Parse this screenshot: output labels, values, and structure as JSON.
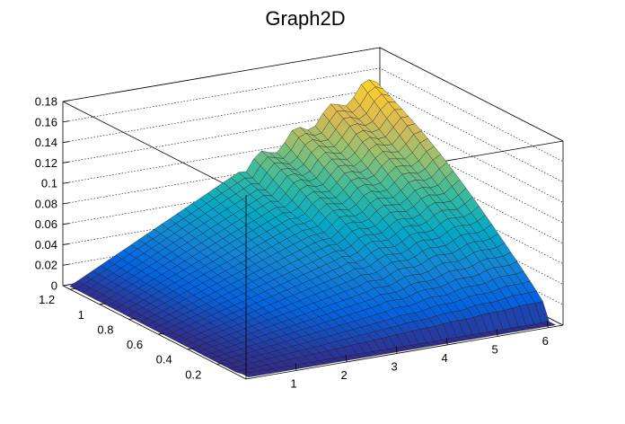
{
  "chart_data": {
    "type": "surface",
    "title": "Graph2D",
    "x_axis": {
      "range": [
        0,
        6.3
      ],
      "ticks": [
        "1",
        "2",
        "3",
        "4",
        "5",
        "6"
      ]
    },
    "y_axis": {
      "range": [
        0,
        1.25
      ],
      "ticks": [
        "0.2",
        "0.4",
        "0.6",
        "0.8",
        "1",
        "1.2"
      ]
    },
    "z_axis": {
      "range": [
        0,
        0.18
      ],
      "ticks": [
        "0",
        "0.02",
        "0.04",
        "0.06",
        "0.08",
        "0.1",
        "0.12",
        "0.14",
        "0.16",
        "0.18"
      ]
    },
    "grid": true,
    "palette": "kBird",
    "colors": [
      "#352a87",
      "#0363e1",
      "#1485d4",
      "#06a7c6",
      "#38b99e",
      "#92bf73",
      "#d9ba56",
      "#fcce2e",
      "#f9fb0e"
    ],
    "surface_description": {
      "x_samples": [
        0.3,
        0.6,
        0.9,
        1.2,
        1.5,
        1.8,
        2.1,
        2.4,
        2.7,
        3.0,
        3.3,
        3.6,
        3.9,
        4.2,
        4.5,
        4.8,
        5.1,
        5.4,
        5.7,
        6.0
      ],
      "peak_z_at_max_y": [
        0.004,
        0.01,
        0.017,
        0.025,
        0.032,
        0.04,
        0.048,
        0.056,
        0.064,
        0.072,
        0.079,
        0.087,
        0.095,
        0.104,
        0.112,
        0.121,
        0.129,
        0.137,
        0.145,
        0.152
      ]
    }
  }
}
